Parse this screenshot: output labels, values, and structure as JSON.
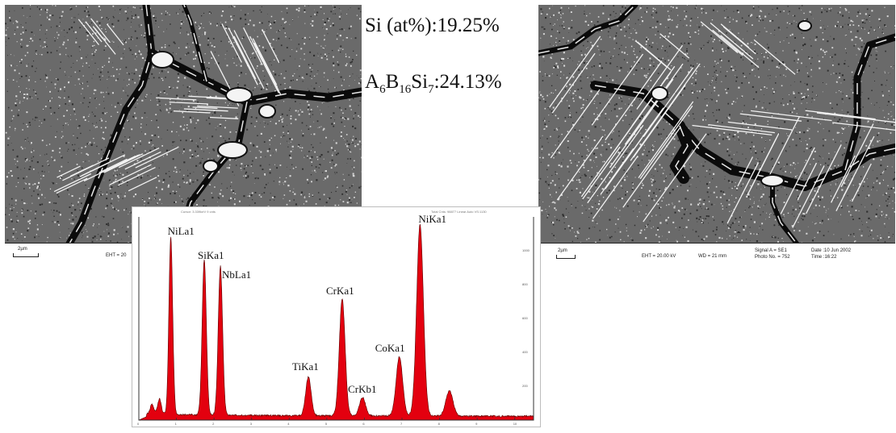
{
  "left_image": {
    "scale": "2µm",
    "eht": "EHT = 20"
  },
  "composition": {
    "si_label": "Si (at%):19.25%",
    "boride_A": "A",
    "boride_sub1": "6",
    "boride_B": "B",
    "boride_sub2": "16",
    "boride_Si": "Si",
    "boride_sub3": "7",
    "boride_value": ":24.13%"
  },
  "right_image": {
    "scale": "2µm",
    "eht": "EHT = 20.00 kV",
    "wd": "WD =  21 mm",
    "signal": "Signal A = SE1",
    "photo": "Photo No. = 752",
    "date": "Date :10 Jun 2002",
    "time": "Time :16:22"
  },
  "spectrum": {
    "header_left": "Cursor: 3.339keV 9 cnts",
    "header_right": "Total Cnts: 98877 Linear Auto VS:1130",
    "yticks": [
      "1000",
      "800",
      "600",
      "400",
      "200"
    ],
    "xticks": [
      "0",
      "1",
      "2",
      "3",
      "4",
      "5",
      "6",
      "7",
      "8",
      "9",
      "10"
    ],
    "peaks": [
      {
        "label": "NiLa1",
        "x": 0.85,
        "h": 1050
      },
      {
        "label": "SiKa1",
        "x": 1.74,
        "h": 920
      },
      {
        "label": "NbLa1",
        "x": 2.17,
        "h": 880
      },
      {
        "label": "TiKa1",
        "x": 4.51,
        "h": 230
      },
      {
        "label": "CrKa1",
        "x": 5.41,
        "h": 690
      },
      {
        "label": "CrKb1",
        "x": 5.95,
        "h": 110
      },
      {
        "label": "CoKa1",
        "x": 6.93,
        "h": 350
      },
      {
        "label": "NiKa1",
        "x": 7.48,
        "h": 1130
      }
    ],
    "extra_peaks": [
      {
        "x": 8.26,
        "h": 150
      },
      {
        "x": 0.55,
        "h": 90
      },
      {
        "x": 0.35,
        "h": 60
      }
    ]
  }
}
